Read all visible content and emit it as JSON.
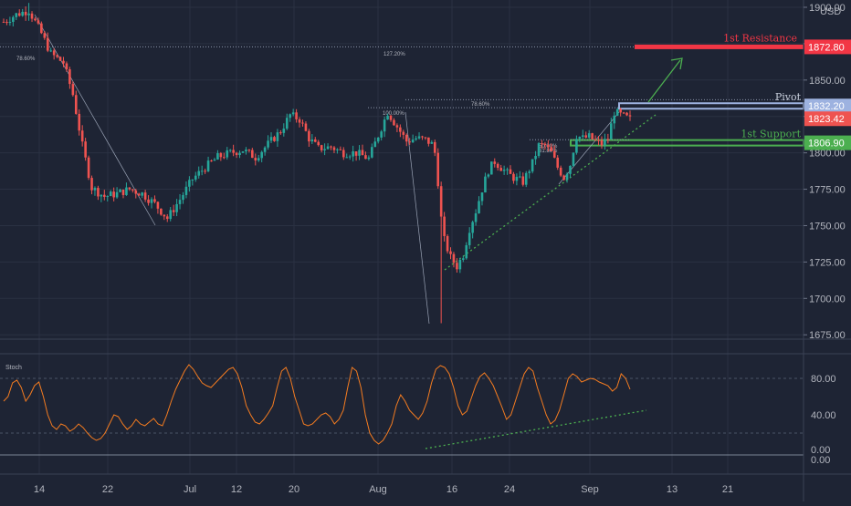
{
  "currency": "USD",
  "colors": {
    "background": "#1e2434",
    "up": "#26a69a",
    "down": "#ef5350",
    "grid": "#2a3142",
    "axis_text": "#b2b5be",
    "resistance": "#f23645",
    "support": "#4caf50",
    "pivot": "#9db2e0",
    "price_tag": "#ef5350",
    "stoch_line": "#f57c20",
    "trend": "#4caf50"
  },
  "chart_data": [
    {
      "type": "candlestick",
      "x_ticks": [
        "14",
        "22",
        "Jul",
        "12",
        "20",
        "Aug",
        "16",
        "24",
        "Sep",
        "13",
        "21"
      ],
      "y_ticks": [
        "1900.00",
        "1875.00",
        "1850.00",
        "1825.00",
        "1800.00",
        "1775.00",
        "1750.00",
        "1725.00",
        "1700.00",
        "1675.00"
      ],
      "ylim": [
        1672,
        1905
      ],
      "current_price": "1823.42",
      "anchors": [
        [
          0,
          1890
        ],
        [
          4,
          1895
        ],
        [
          8,
          1898
        ],
        [
          12,
          1882
        ],
        [
          15,
          1868
        ],
        [
          19,
          1862
        ],
        [
          22,
          1840
        ],
        [
          25,
          1805
        ],
        [
          28,
          1776
        ],
        [
          32,
          1770
        ],
        [
          36,
          1772
        ],
        [
          40,
          1775
        ],
        [
          44,
          1772
        ],
        [
          48,
          1765
        ],
        [
          52,
          1755
        ],
        [
          56,
          1768
        ],
        [
          60,
          1782
        ],
        [
          64,
          1790
        ],
        [
          68,
          1797
        ],
        [
          72,
          1800
        ],
        [
          76,
          1802
        ],
        [
          80,
          1797
        ],
        [
          84,
          1806
        ],
        [
          88,
          1815
        ],
        [
          91,
          1826
        ],
        [
          94,
          1823
        ],
        [
          97,
          1810
        ],
        [
          100,
          1803
        ],
        [
          104,
          1804
        ],
        [
          108,
          1800
        ],
        [
          112,
          1800
        ],
        [
          116,
          1796
        ],
        [
          119,
          1812
        ],
        [
          122,
          1828
        ],
        [
          125,
          1818
        ],
        [
          128,
          1808
        ],
        [
          131,
          1810
        ],
        [
          134,
          1809
        ],
        [
          136,
          1806
        ],
        [
          137,
          1800
        ],
        [
          138,
          1780
        ],
        [
          139,
          1755
        ],
        [
          140,
          1740
        ],
        [
          142,
          1728
        ],
        [
          144,
          1722
        ],
        [
          146,
          1730
        ],
        [
          148,
          1748
        ],
        [
          150,
          1760
        ],
        [
          152,
          1775
        ],
        [
          154,
          1788
        ],
        [
          156,
          1794
        ],
        [
          158,
          1790
        ],
        [
          160,
          1786
        ],
        [
          162,
          1783
        ],
        [
          165,
          1780
        ],
        [
          168,
          1793
        ],
        [
          170,
          1805
        ],
        [
          172,
          1805
        ],
        [
          174,
          1800
        ],
        [
          176,
          1790
        ],
        [
          178,
          1783
        ],
        [
          180,
          1792
        ],
        [
          182,
          1812
        ],
        [
          184,
          1810
        ],
        [
          186,
          1811
        ],
        [
          188,
          1808
        ],
        [
          190,
          1806
        ],
        [
          192,
          1810
        ],
        [
          194,
          1828
        ],
        [
          196,
          1826
        ],
        [
          198,
          1824
        ],
        [
          199,
          1823
        ]
      ],
      "levels": [
        {
          "label": "1st Resistance",
          "value": "1872.80",
          "price": 1872.8
        },
        {
          "label": "Pivot",
          "value": "1832.20",
          "price": 1832.2
        },
        {
          "label": "1st Support",
          "value": "1806.90",
          "price": 1806.9
        }
      ],
      "fib_labels": [
        "78.60%",
        "127.20%",
        "100.00%",
        "78.60%",
        "50.00%",
        "61.80%"
      ]
    },
    {
      "type": "line",
      "title": "Stoch",
      "y_ticks": [
        "80.00",
        "40.00",
        "0.00",
        "0.00"
      ],
      "ylim": [
        0,
        100
      ],
      "values": [
        55,
        60,
        75,
        78,
        70,
        55,
        62,
        72,
        76,
        60,
        40,
        28,
        24,
        30,
        28,
        22,
        25,
        30,
        26,
        20,
        15,
        12,
        14,
        20,
        30,
        40,
        38,
        30,
        24,
        28,
        35,
        30,
        28,
        32,
        36,
        30,
        28,
        40,
        55,
        68,
        78,
        88,
        95,
        90,
        82,
        75,
        72,
        70,
        75,
        80,
        85,
        90,
        92,
        85,
        70,
        50,
        40,
        32,
        30,
        35,
        42,
        50,
        70,
        88,
        92,
        80,
        60,
        45,
        30,
        28,
        30,
        35,
        40,
        42,
        38,
        30,
        35,
        45,
        70,
        92,
        88,
        70,
        40,
        20,
        12,
        8,
        12,
        20,
        30,
        50,
        62,
        55,
        45,
        40,
        35,
        42,
        55,
        75,
        90,
        94,
        92,
        85,
        70,
        50,
        40,
        44,
        58,
        72,
        82,
        86,
        80,
        72,
        60,
        48,
        35,
        40,
        55,
        70,
        85,
        92,
        88,
        70,
        55,
        40,
        30,
        34,
        45,
        62,
        80,
        85,
        82,
        76,
        78,
        80,
        79,
        76,
        74,
        72,
        66,
        70,
        85,
        80,
        68
      ]
    }
  ]
}
